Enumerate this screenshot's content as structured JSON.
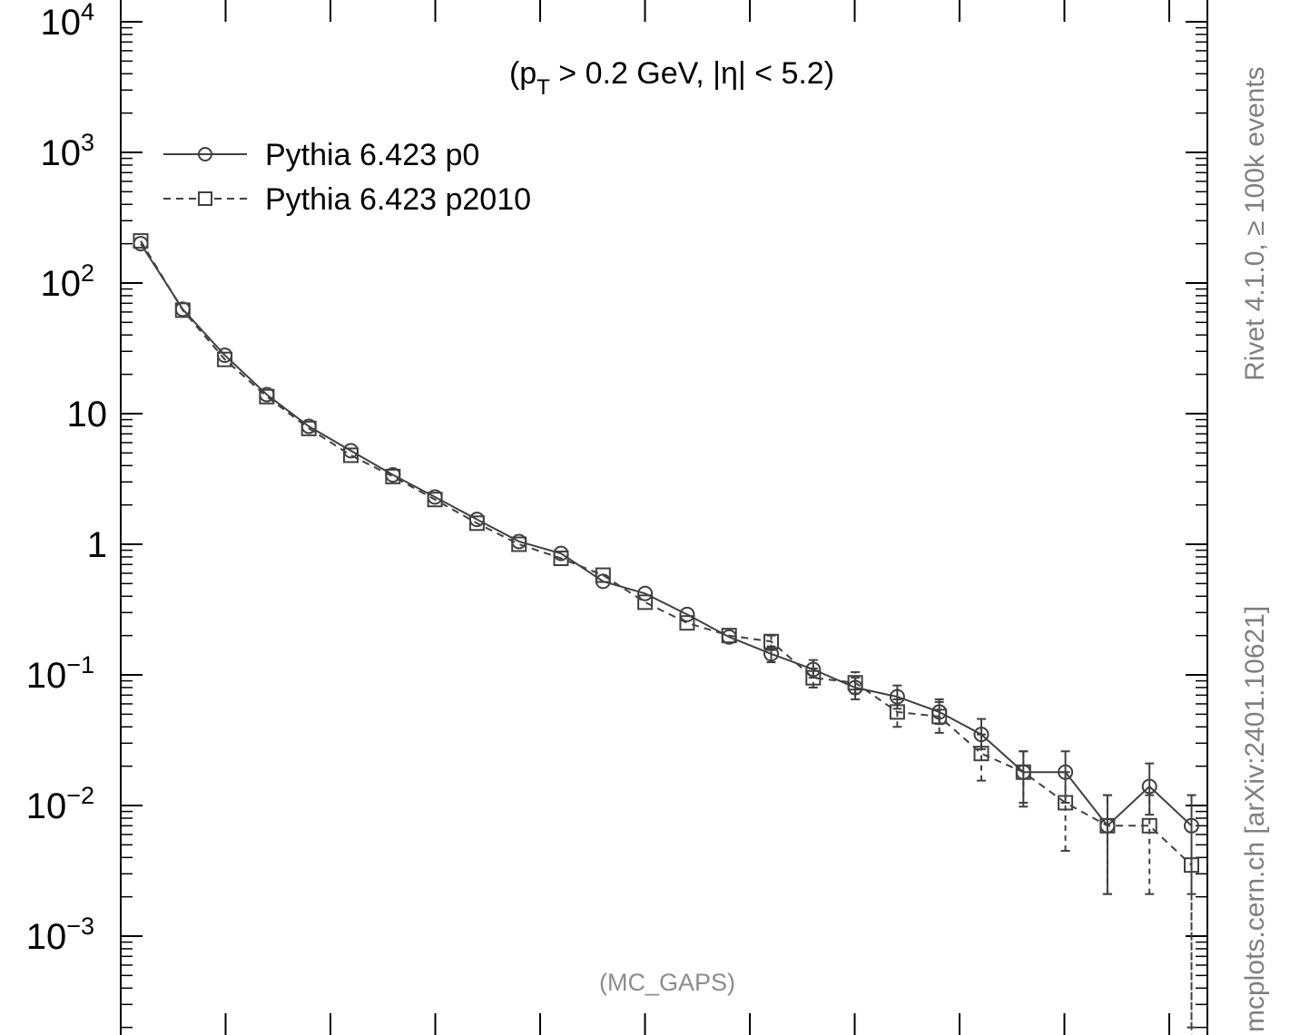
{
  "chart_data": {
    "type": "line",
    "title": "",
    "xlabel": "",
    "ylabel": "",
    "y_scale": "log",
    "xlim": [
      0.5,
      25.75
    ],
    "ylim": [
      0.0002,
      10000
    ],
    "grid": false,
    "legend_position": "top-left",
    "annotation": {
      "parts": [
        "(p",
        "T",
        " > 0.2 GeV, |",
        "η",
        "| < 5.2)"
      ]
    },
    "y_ticks": [
      {
        "value": 10000,
        "label": "10",
        "exp": "4"
      },
      {
        "value": 1000,
        "label": "10",
        "exp": "3"
      },
      {
        "value": 100,
        "label": "10",
        "exp": "2"
      },
      {
        "value": 10,
        "label": "10",
        "exp": ""
      },
      {
        "value": 1,
        "label": "1",
        "exp": ""
      },
      {
        "value": 0.1,
        "label": "10",
        "exp": "−1"
      },
      {
        "value": 0.01,
        "label": "10",
        "exp": "−2"
      },
      {
        "value": 0.001,
        "label": "10",
        "exp": "−3"
      }
    ],
    "series": [
      {
        "name": "Pythia 6.423 p0",
        "color": "#404040",
        "line_style": "solid",
        "marker": "circle",
        "x": [
          1,
          2,
          3,
          4,
          5,
          6,
          7,
          8,
          9,
          10,
          11,
          12,
          13,
          14,
          15,
          16,
          17,
          18,
          19,
          20,
          21,
          22,
          23,
          24,
          25,
          26,
          27
        ],
        "y": [
          200,
          63,
          28,
          14,
          8,
          5.2,
          3.4,
          2.3,
          1.55,
          1.05,
          0.85,
          0.52,
          0.42,
          0.29,
          0.195,
          0.145,
          0.11,
          0.08,
          0.068,
          0.052,
          0.035,
          0.018,
          0.018,
          0.007,
          0.014,
          0.007,
          null
        ],
        "err": [
          0,
          0,
          0,
          0,
          0,
          0,
          0,
          0,
          0,
          0,
          0,
          0,
          0,
          0,
          0,
          0,
          0,
          0,
          0,
          0,
          0,
          0,
          0,
          0,
          0,
          0,
          0
        ],
        "err_lo": [
          null,
          null,
          null,
          null,
          null,
          null,
          null,
          null,
          null,
          null,
          null,
          null,
          null,
          null,
          null,
          0.125,
          0.095,
          0.065,
          0.055,
          0.042,
          0.027,
          0.0105,
          0.0105,
          0.0021,
          0.0085,
          0.0021,
          null
        ],
        "err_hi": [
          null,
          null,
          null,
          null,
          null,
          null,
          null,
          null,
          null,
          null,
          null,
          null,
          null,
          null,
          null,
          0.165,
          0.13,
          0.095,
          0.083,
          0.065,
          0.046,
          0.026,
          0.026,
          0.012,
          0.021,
          0.012,
          null
        ]
      },
      {
        "name": "Pythia 6.423 p2010",
        "color": "#404040",
        "line_style": "dashed",
        "marker": "square",
        "x": [
          1,
          2,
          3,
          4,
          5,
          6,
          7,
          8,
          9,
          10,
          11,
          12,
          13,
          14,
          15,
          16,
          17,
          18,
          19,
          20,
          21,
          22,
          23,
          24,
          25,
          26,
          27
        ],
        "y": [
          210,
          62,
          26,
          13.5,
          7.7,
          4.8,
          3.3,
          2.2,
          1.45,
          1.0,
          0.78,
          0.58,
          0.36,
          0.25,
          0.2,
          0.18,
          0.095,
          0.087,
          0.052,
          0.048,
          0.025,
          0.018,
          0.0105,
          0.007,
          0.007,
          0.0035,
          null
        ],
        "err_lo": [
          null,
          null,
          null,
          null,
          null,
          null,
          null,
          null,
          null,
          null,
          null,
          null,
          null,
          null,
          null,
          0.155,
          0.08,
          0.072,
          0.04,
          0.036,
          0.0155,
          0.0098,
          0.0045,
          0.0021,
          0.0021,
          0.0002,
          null
        ],
        "err_hi": [
          null,
          null,
          null,
          null,
          null,
          null,
          null,
          null,
          null,
          null,
          null,
          null,
          null,
          null,
          null,
          0.2,
          0.112,
          0.105,
          0.065,
          0.062,
          0.035,
          0.026,
          0.018,
          0.012,
          0.012,
          0.012,
          null
        ]
      }
    ]
  },
  "side_label_top": "Rivet 4.1.0, ≥ 100k events",
  "side_label_bottom": "mcplots.cern.ch [arXiv:2401.10621]",
  "analysis_label": "(MC_GAPS)"
}
